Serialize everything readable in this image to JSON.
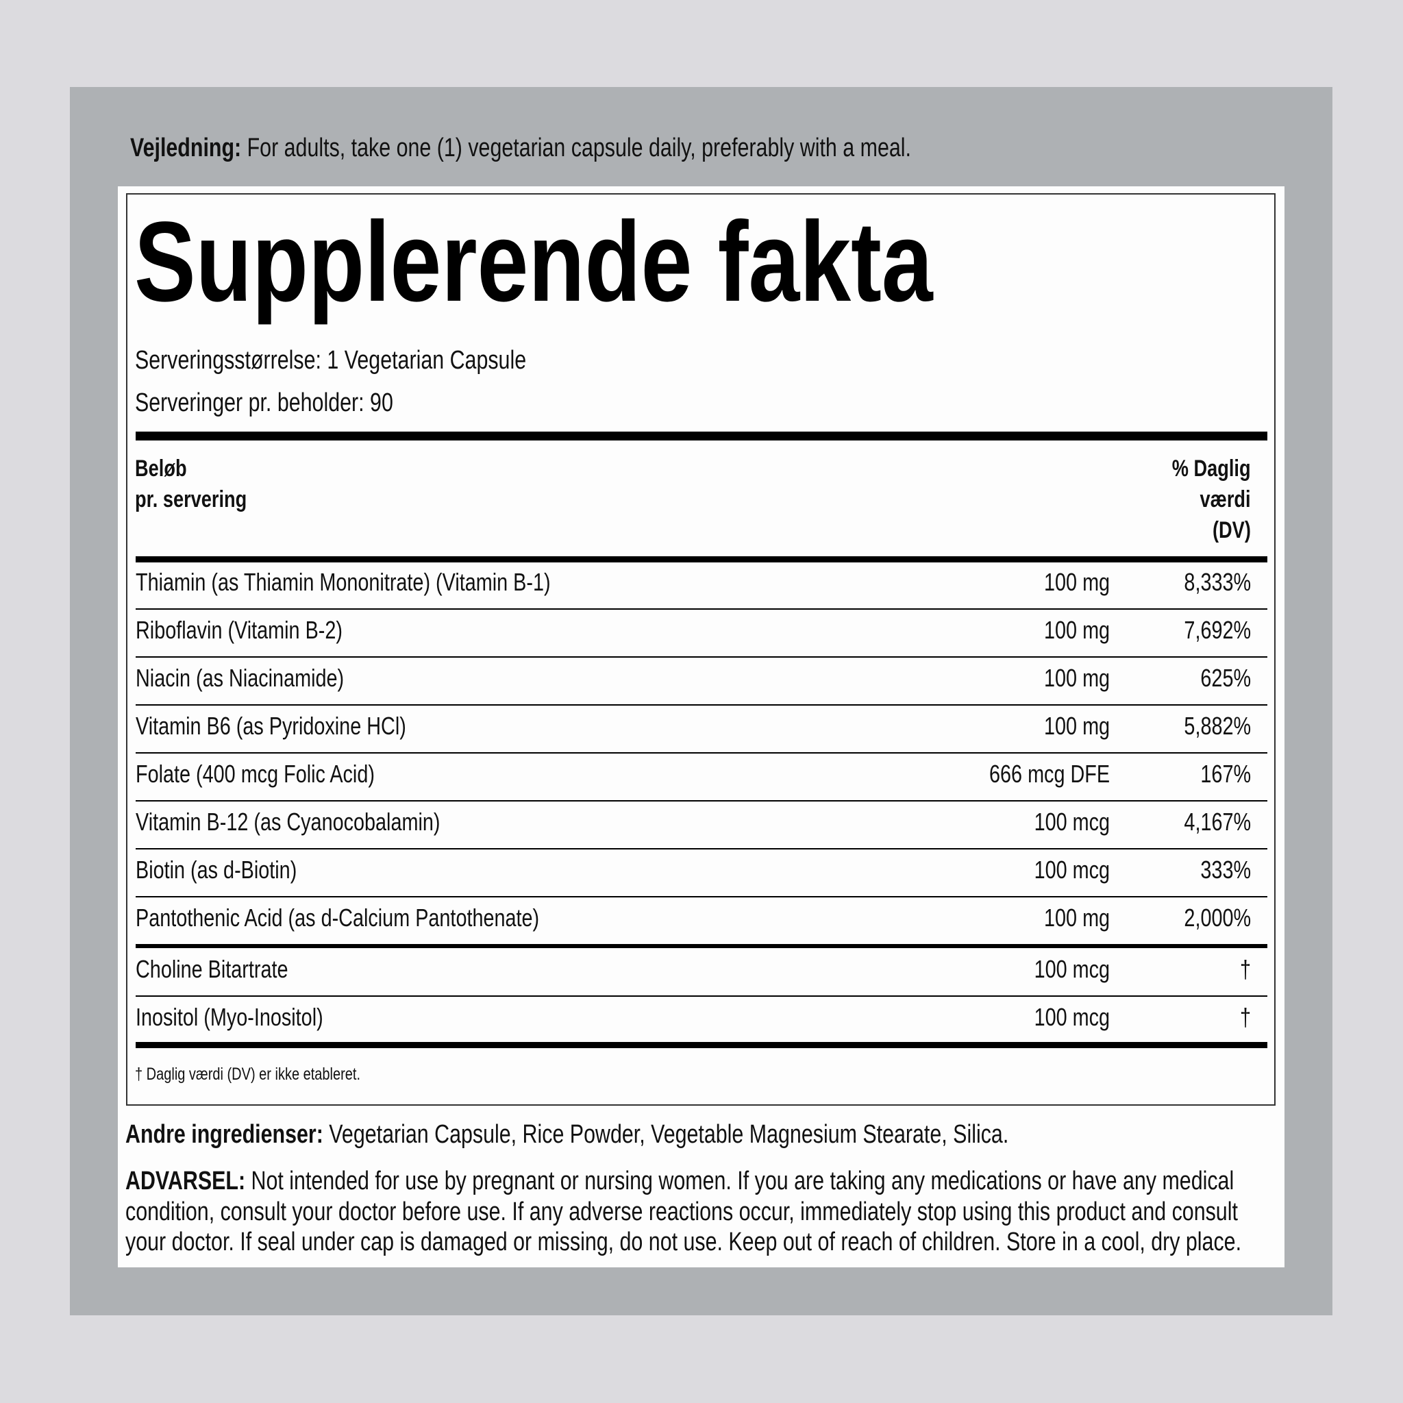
{
  "directions": {
    "label": "Vejledning:",
    "text": " For adults, take one (1) vegetarian capsule daily, preferably with a meal."
  },
  "facts": {
    "title": "Supplerende fakta",
    "serving_size": "Serveringsstørrelse: 1 Vegetarian Capsule",
    "servings_per_container": "Serveringer pr. beholder: 90",
    "header_amount": [
      "Beløb",
      "pr. servering"
    ],
    "header_dv": [
      "% Daglig",
      "værdi",
      "(DV)"
    ],
    "rows": [
      {
        "name": "Thiamin (as Thiamin Mononitrate) (Vitamin B-1)",
        "amount": "100 mg",
        "dv": "8,333%"
      },
      {
        "name": "Riboflavin (Vitamin B-2)",
        "amount": "100 mg",
        "dv": "7,692%"
      },
      {
        "name": "Niacin (as Niacinamide)",
        "amount": "100 mg",
        "dv": "625%"
      },
      {
        "name": "Vitamin B6 (as Pyridoxine HCl)",
        "amount": "100 mg",
        "dv": "5,882%"
      },
      {
        "name": "Folate (400 mcg Folic Acid)",
        "amount": "666 mcg DFE",
        "dv": "167%"
      },
      {
        "name": "Vitamin B-12 (as Cyanocobalamin)",
        "amount": "100 mcg",
        "dv": "4,167%"
      },
      {
        "name": "Biotin (as d-Biotin)",
        "amount": "100 mcg",
        "dv": "333%"
      },
      {
        "name": "Pantothenic Acid (as d-Calcium Pantothenate)",
        "amount": "100 mg",
        "dv": "2,000%"
      },
      {
        "name": "Choline Bitartrate",
        "amount": "100 mcg",
        "dv": "†"
      },
      {
        "name": "Inositol (Myo-Inositol)",
        "amount": "100 mcg",
        "dv": "†"
      }
    ],
    "footnote": "† Daglig værdi (DV) er ikke etableret."
  },
  "other_ingredients": {
    "label": "Andre ingredienser:",
    "text": " Vegetarian Capsule, Rice Powder, Vegetable Magnesium Stearate, Silica."
  },
  "warning": {
    "label": "ADVARSEL:",
    "lines": [
      " Not intended for use by pregnant or nursing women. If you are taking any medications or have any medical",
      "condition, consult your doctor before use. If any adverse reactions occur, immediately stop using this product and consult",
      "your doctor. If seal under cap is damaged or missing, do not use. Keep out of reach of children. Store in a cool, dry place."
    ]
  },
  "colors": {
    "page_bg": "#dcdbdf",
    "panel": "#aeb1b4",
    "label_bg": "#fdfdfd",
    "text": "#111111"
  }
}
